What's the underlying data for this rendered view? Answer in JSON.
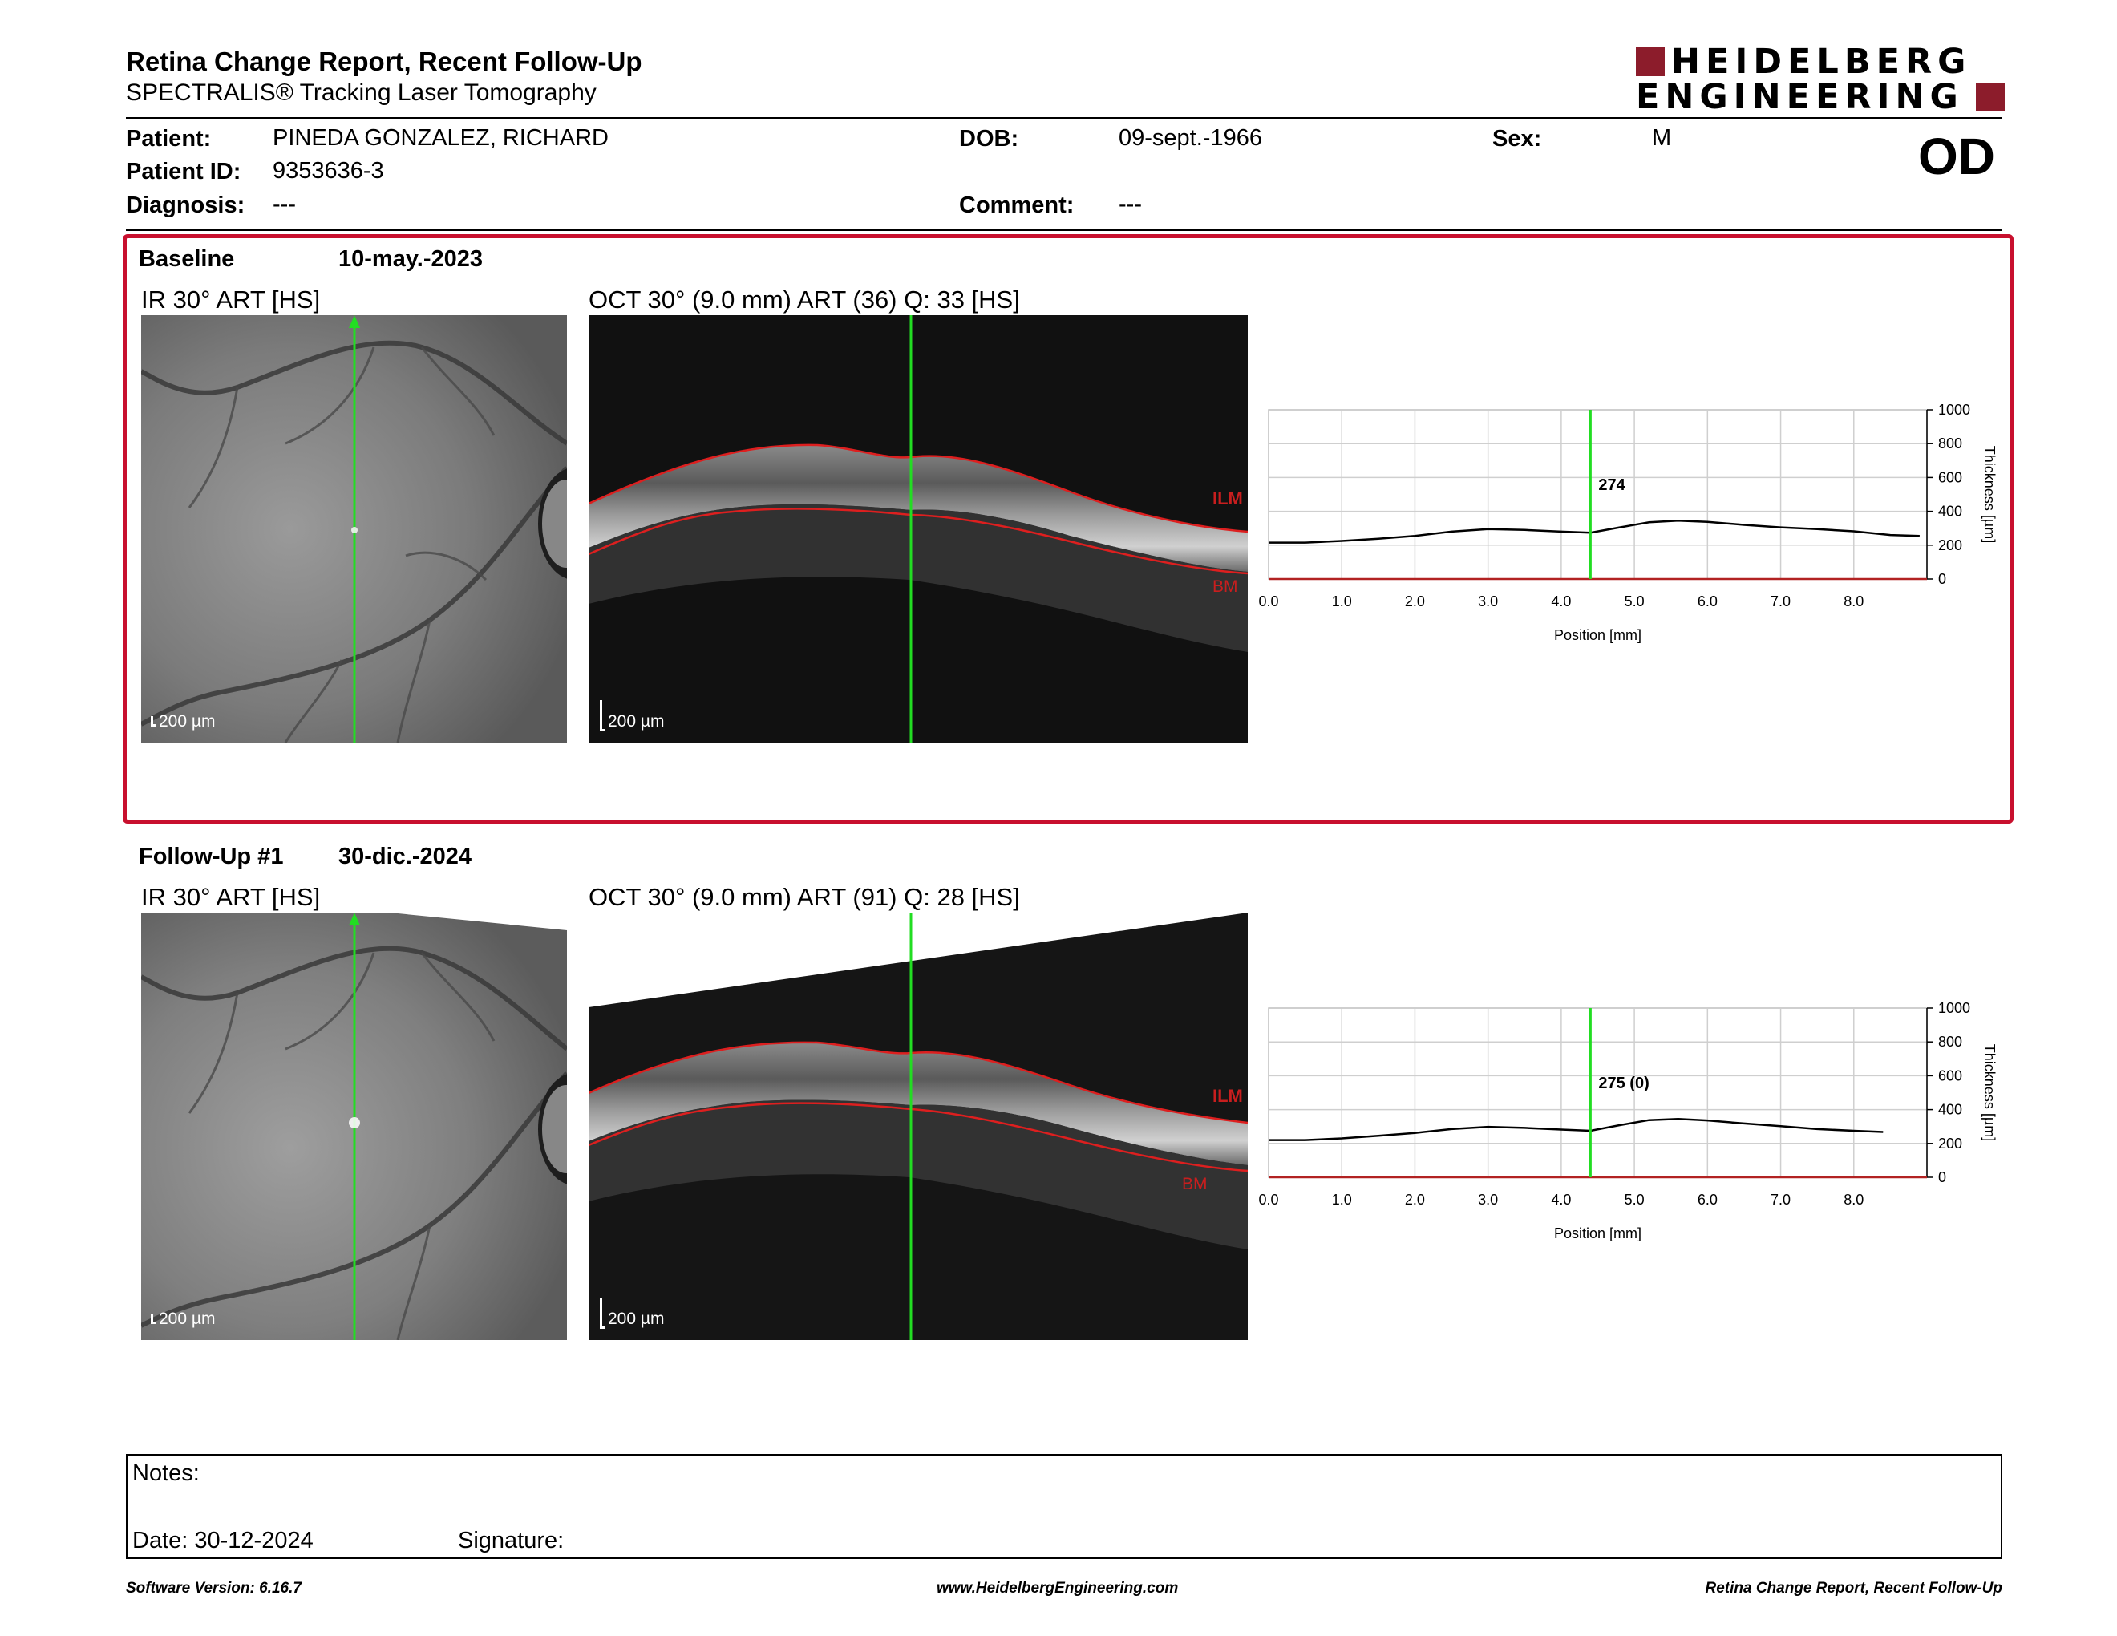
{
  "header": {
    "title": "Retina Change Report, Recent Follow-Up",
    "subtitle": "SPECTRALIS® Tracking Laser Tomography",
    "logo_line1": "HEIDELBERG",
    "logo_line2": "ENGINEERING"
  },
  "patient": {
    "name_label": "Patient:",
    "name": "PINEDA GONZALEZ, RICHARD",
    "id_label": "Patient ID:",
    "id": "9353636-3",
    "diagnosis_label": "Diagnosis:",
    "diagnosis": "---",
    "dob_label": "DOB:",
    "dob": "09-sept.-1966",
    "comment_label": "Comment:",
    "comment": "---",
    "sex_label": "Sex:",
    "sex": "M",
    "eye": "OD"
  },
  "baseline": {
    "label": "Baseline",
    "date": "10-may.-2023",
    "ir_label": "IR 30° ART [HS]",
    "oct_label": "OCT 30° (9.0 mm) ART (36) Q: 33 [HS]",
    "ir_scale": "200 µm",
    "oct_scale": "200 µm",
    "ilm": "ILM",
    "bm": "BM"
  },
  "followup": {
    "label": "Follow-Up #1",
    "date": "30-dic.-2024",
    "ir_label": "IR 30° ART [HS]",
    "oct_label": "OCT 30° (9.0 mm) ART (91) Q: 28 [HS]",
    "ir_scale": "200 µm",
    "oct_scale": "200 µm",
    "ilm": "ILM",
    "bm": "BM"
  },
  "chart_data": [
    {
      "type": "line",
      "xlabel": "Position [mm]",
      "ylabel": "Thickness [µm]",
      "xlim": [
        0,
        9.0
      ],
      "ylim": [
        0,
        1000
      ],
      "xticks": [
        "0.0",
        "1.0",
        "2.0",
        "3.0",
        "4.0",
        "5.0",
        "6.0",
        "7.0",
        "8.0"
      ],
      "yticks": [
        "0",
        "200",
        "400",
        "600",
        "800",
        "1000"
      ],
      "grid": true,
      "x": [
        0.0,
        0.5,
        1.0,
        1.5,
        2.0,
        2.5,
        3.0,
        3.5,
        4.0,
        4.4,
        4.8,
        5.2,
        5.6,
        6.0,
        6.5,
        7.0,
        7.5,
        8.0,
        8.5,
        8.9
      ],
      "values": [
        215,
        215,
        225,
        238,
        255,
        280,
        295,
        290,
        280,
        274,
        305,
        335,
        345,
        338,
        320,
        305,
        295,
        282,
        260,
        255
      ],
      "marker_x": 4.4,
      "marker_label": "274"
    },
    {
      "type": "line",
      "xlabel": "Position [mm]",
      "ylabel": "Thickness [µm]",
      "xlim": [
        0,
        9.0
      ],
      "ylim": [
        0,
        1000
      ],
      "xticks": [
        "0.0",
        "1.0",
        "2.0",
        "3.0",
        "4.0",
        "5.0",
        "6.0",
        "7.0",
        "8.0"
      ],
      "yticks": [
        "0",
        "200",
        "400",
        "600",
        "800",
        "1000"
      ],
      "grid": true,
      "x": [
        0.0,
        0.5,
        1.0,
        1.5,
        2.0,
        2.5,
        3.0,
        3.5,
        4.0,
        4.4,
        4.8,
        5.2,
        5.6,
        6.0,
        6.5,
        7.0,
        7.5,
        8.0,
        8.4
      ],
      "values": [
        220,
        220,
        230,
        245,
        262,
        285,
        298,
        292,
        282,
        275,
        308,
        338,
        345,
        336,
        318,
        302,
        285,
        275,
        268
      ],
      "marker_x": 4.4,
      "marker_label": "275 (0)"
    }
  ],
  "notes": {
    "notes_label": "Notes:",
    "date_label": "Date: 30-12-2024",
    "signature_label": "Signature:"
  },
  "footer": {
    "left": "Software Version: 6.16.7",
    "center": "www.HeidelbergEngineering.com",
    "right": "Retina Change Report, Recent Follow-Up"
  },
  "colors": {
    "frame": "#c8102e",
    "logo": "#8c1c2b",
    "scan_line": "#22dd22",
    "segmentation": "#dd1f1f"
  }
}
